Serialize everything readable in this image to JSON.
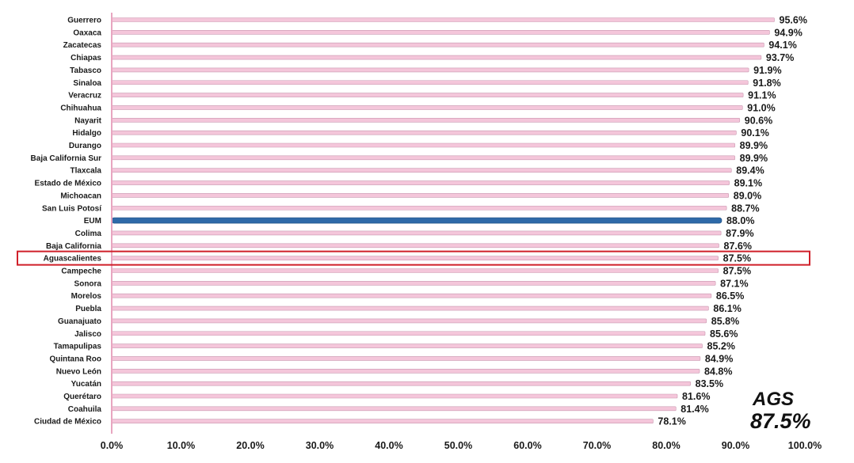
{
  "chart_data": {
    "type": "bar",
    "orientation": "horizontal",
    "categories": [
      "Guerrero",
      "Oaxaca",
      "Zacatecas",
      "Chiapas",
      "Tabasco",
      "Sinaloa",
      "Veracruz",
      "Chihuahua",
      "Nayarit",
      "Hidalgo",
      "Durango",
      "Baja California Sur",
      "Tlaxcala",
      "Estado de México",
      "Michoacan",
      "San Luis Potosí",
      "EUM",
      "Colima",
      "Baja California",
      "Aguascalientes",
      "Campeche",
      "Sonora",
      "Morelos",
      "Puebla",
      "Guanajuato",
      "Jalisco",
      "Tamapulipas",
      "Quintana Roo",
      "Nuevo León",
      "Yucatán",
      "Querétaro",
      "Coahuila",
      "Ciudad de México"
    ],
    "values": [
      95.6,
      94.9,
      94.1,
      93.7,
      91.9,
      91.8,
      91.1,
      91.0,
      90.6,
      90.1,
      89.9,
      89.9,
      89.4,
      89.1,
      89.0,
      88.7,
      88.0,
      87.9,
      87.6,
      87.5,
      87.5,
      87.1,
      86.5,
      86.1,
      85.8,
      85.6,
      85.2,
      84.9,
      84.8,
      83.5,
      81.6,
      81.4,
      78.1
    ],
    "value_labels": [
      "95.6%",
      "94.9%",
      "94.1%",
      "93.7%",
      "91.9%",
      "91.8%",
      "91.1%",
      "91.0%",
      "90.6%",
      "90.1%",
      "89.9%",
      "89.9%",
      "89.4%",
      "89.1%",
      "89.0%",
      "88.7%",
      "88.0%",
      "87.9%",
      "87.6%",
      "87.5%",
      "87.5%",
      "87.1%",
      "86.5%",
      "86.1%",
      "85.8%",
      "85.6%",
      "85.2%",
      "84.9%",
      "84.8%",
      "83.5%",
      "81.6%",
      "81.4%",
      "78.1%"
    ],
    "xlim": [
      0,
      100
    ],
    "x_ticks": [
      "0.0%",
      "10.0%",
      "20.0%",
      "30.0%",
      "40.0%",
      "50.0%",
      "60.0%",
      "70.0%",
      "80.0%",
      "90.0%",
      "100.0%"
    ],
    "highlighted_category": "Aguascalientes",
    "national_category": "EUM",
    "colors": {
      "bar": "#f4c6da",
      "bar_edge": "#c998b0",
      "eum_bar": "#2e6aa8",
      "highlight_box": "#d0202a",
      "axis": "#e8a6c0"
    },
    "grid": false
  },
  "annotation": {
    "line1": "AGS",
    "line2": "87.5%"
  }
}
